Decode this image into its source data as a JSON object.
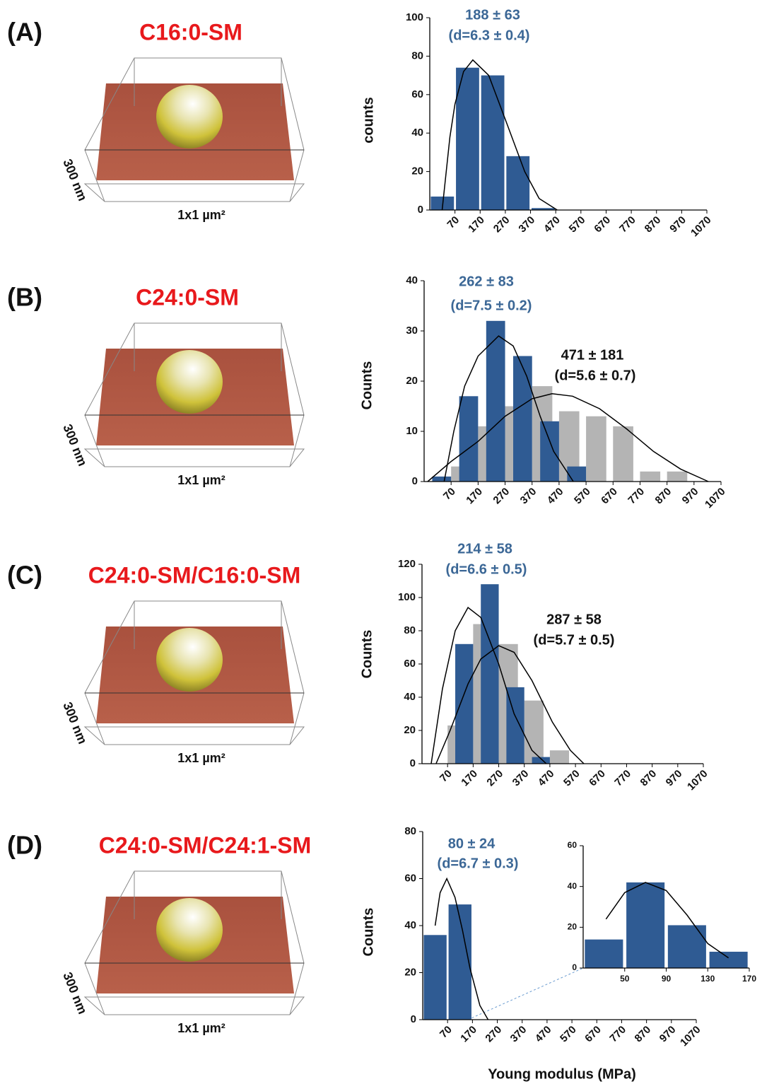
{
  "chart_data": [
    {
      "type": "histogram",
      "panel": "(A)",
      "sample": "C16:0-SM",
      "image_labels": [
        "300 nm",
        "1x1 µm²"
      ],
      "y_label": "counts",
      "bins": [
        -30,
        70,
        170,
        270,
        370,
        470,
        570,
        670,
        770,
        870,
        970,
        1070
      ],
      "xlim": [
        -30,
        1070
      ],
      "xticks": [
        70,
        170,
        270,
        370,
        470,
        570,
        670,
        770,
        870,
        970,
        1070
      ],
      "ylim": [
        0,
        100
      ],
      "yticks": [
        0,
        20,
        40,
        60,
        80,
        100
      ],
      "series": [
        {
          "color": "#2f5b93",
          "values": [
            7,
            74,
            70,
            28,
            1,
            0,
            0,
            0,
            0,
            0,
            0
          ]
        }
      ],
      "fits": [
        {
          "color": "#000000",
          "x": [
            19,
            50,
            70,
            104,
            141,
            204,
            276,
            347,
            404,
            476
          ],
          "y": [
            0,
            38,
            55,
            72,
            78,
            70,
            45,
            20,
            6,
            0
          ]
        }
      ],
      "annotations": [
        {
          "text": "188 ± 63",
          "color": "#3b6796"
        },
        {
          "text": "(d=6.3 ± 0.4)",
          "color": "#3b6796"
        }
      ]
    },
    {
      "type": "histogram",
      "panel": "(B)",
      "sample": "C24:0-SM",
      "image_labels": [
        "300 nm",
        "1x1 µm²"
      ],
      "y_label": "Counts",
      "bins": [
        -30,
        70,
        170,
        270,
        370,
        470,
        570,
        670,
        770,
        870,
        970,
        1070
      ],
      "xlim": [
        -30,
        1070
      ],
      "xticks": [
        70,
        170,
        270,
        370,
        470,
        570,
        670,
        770,
        870,
        970,
        1070
      ],
      "ylim": [
        0,
        40
      ],
      "yticks": [
        0,
        10,
        20,
        30,
        40
      ],
      "series": [
        {
          "color": "#b4b4b4",
          "values": [
            0,
            3,
            11,
            15,
            19,
            14,
            13,
            11,
            2,
            2,
            0
          ]
        },
        {
          "color": "#2f5b93",
          "values": [
            1,
            17,
            32,
            25,
            12,
            3,
            0,
            0,
            0,
            0,
            0
          ]
        }
      ],
      "fits": [
        {
          "color": "#000000",
          "x": [
            44,
            80,
            120,
            170,
            246,
            300,
            350,
            400,
            450,
            523
          ],
          "y": [
            0,
            10,
            19,
            25,
            29,
            27,
            21,
            13,
            6,
            0
          ]
        },
        {
          "color": "#000000",
          "x": [
            -17,
            70,
            170,
            270,
            370,
            444,
            520,
            620,
            720,
            820,
            920,
            1023
          ],
          "y": [
            0,
            4,
            8,
            13,
            16.5,
            17.5,
            17,
            14.5,
            10.5,
            6,
            2.5,
            0
          ]
        }
      ],
      "annotations": [
        {
          "text": "262 ± 83",
          "color": "#3b6796"
        },
        {
          "text": "(d=7.5 ± 0.2)",
          "color": "#3b6796"
        },
        {
          "text": "471 ± 181",
          "color": "#111111"
        },
        {
          "text": "(d=5.6 ± 0.7)",
          "color": "#111111"
        }
      ]
    },
    {
      "type": "histogram",
      "panel": "(C)",
      "sample": "C24:0-SM/C16:0-SM",
      "image_labels": [
        "300 nm",
        "1x1 µm²"
      ],
      "y_label": "Counts",
      "bins": [
        -30,
        70,
        170,
        270,
        370,
        470,
        570,
        670,
        770,
        870,
        970,
        1070
      ],
      "xlim": [
        -30,
        1070
      ],
      "xticks": [
        70,
        170,
        270,
        370,
        470,
        570,
        670,
        770,
        870,
        970,
        1070
      ],
      "ylim": [
        0,
        120
      ],
      "yticks": [
        0,
        20,
        40,
        60,
        80,
        100,
        120
      ],
      "series": [
        {
          "color": "#b4b4b4",
          "values": [
            0,
            23,
            84,
            72,
            38,
            8,
            0,
            0,
            0,
            0,
            0
          ]
        },
        {
          "color": "#2f5b93",
          "values": [
            0,
            72,
            108,
            46,
            4,
            0,
            0,
            0,
            0,
            0,
            0
          ]
        }
      ],
      "fits": [
        {
          "color": "#000000",
          "x": [
            6,
            50,
            100,
            150,
            200,
            270,
            330,
            400,
            456
          ],
          "y": [
            0,
            45,
            80,
            94,
            88,
            60,
            30,
            8,
            0
          ]
        },
        {
          "color": "#000000",
          "x": [
            25,
            80,
            150,
            200,
            270,
            330,
            400,
            480,
            550,
            603
          ],
          "y": [
            0,
            20,
            48,
            63,
            71,
            67,
            50,
            25,
            8,
            0
          ]
        }
      ],
      "annotations": [
        {
          "text": "214 ± 58",
          "color": "#3b6796"
        },
        {
          "text": "(d=6.6 ± 0.5)",
          "color": "#3b6796"
        },
        {
          "text": "287 ± 58",
          "color": "#111111"
        },
        {
          "text": "(d=5.7 ± 0.5)",
          "color": "#111111"
        }
      ]
    },
    {
      "type": "histogram",
      "panel": "(D)",
      "sample": "C24:0-SM/C24:1-SM",
      "image_labels": [
        "300 nm",
        "1x1 µm²"
      ],
      "y_label": "Counts",
      "x_label": "Young modulus (MPa)",
      "bins": [
        -30,
        70,
        170,
        270,
        370,
        470,
        570,
        670,
        770,
        870,
        970,
        1070
      ],
      "xlim": [
        -30,
        1070
      ],
      "xticks": [
        70,
        170,
        270,
        370,
        470,
        570,
        670,
        770,
        870,
        970,
        1070
      ],
      "ylim": [
        0,
        80
      ],
      "yticks": [
        0,
        20,
        40,
        60,
        80
      ],
      "series": [
        {
          "color": "#2f5b93",
          "values": [
            36,
            49,
            0,
            0,
            0,
            0,
            0,
            0,
            0,
            0,
            0
          ]
        }
      ],
      "fits": [
        {
          "color": "#000000",
          "x": [
            20,
            40,
            67,
            100,
            130,
            160,
            200,
            233
          ],
          "y": [
            40,
            54,
            60,
            52,
            38,
            22,
            6,
            0
          ]
        }
      ],
      "annotations": [
        {
          "text": "80 ± 24",
          "color": "#3b6796"
        },
        {
          "text": "(d=6.7 ± 0.3)",
          "color": "#3b6796"
        }
      ]
    },
    {
      "type": "histogram",
      "bins": [
        10,
        50,
        90,
        130,
        170
      ],
      "xlim": [
        10,
        170
      ],
      "xticks": [
        50,
        90,
        130,
        170
      ],
      "ylim": [
        0,
        60
      ],
      "yticks": [
        0,
        20,
        40,
        60
      ],
      "series": [
        {
          "color": "#2f5b93",
          "values": [
            14,
            42,
            21,
            8
          ]
        }
      ],
      "fits": [
        {
          "color": "#000000",
          "x": [
            32,
            50,
            70,
            90,
            110,
            130,
            150
          ],
          "y": [
            24,
            37,
            42,
            38,
            26,
            12,
            5
          ]
        }
      ]
    }
  ]
}
